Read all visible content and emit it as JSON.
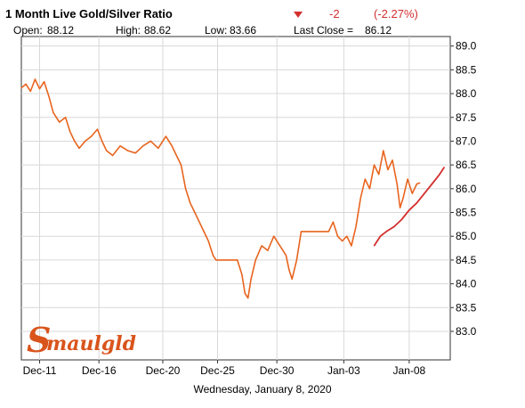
{
  "chart_data": {
    "type": "line",
    "title": "1 Month Live Gold/Silver Ratio",
    "change": {
      "value": "-2",
      "percent": "(-2.27%)",
      "direction": "down",
      "color": "#d32f2f"
    },
    "stats": {
      "open_label": "Open:",
      "open": "88.12",
      "high_label": "High:",
      "high": "88.62",
      "low_label": "Low:",
      "low": "83.66",
      "close_label": "Last Close =",
      "close": "86.12"
    },
    "xlabel": "Wednesday, January  8, 2020",
    "x_tick_labels": [
      "Dec-11",
      "Dec-16",
      "Dec-20",
      "Dec-25",
      "Dec-30",
      "Jan-03",
      "Jan-08"
    ],
    "y_ticks": [
      83.0,
      83.5,
      84.0,
      84.5,
      85.0,
      85.5,
      86.0,
      86.5,
      87.0,
      87.5,
      88.0,
      88.5,
      89.0
    ],
    "ylim": [
      82.4,
      89.2
    ],
    "grid": true,
    "logo": "Smaulgld",
    "series": [
      {
        "color": "#e8641e",
        "points": [
          [
            0,
            88.12
          ],
          [
            0.3,
            88.2
          ],
          [
            0.6,
            88.05
          ],
          [
            0.9,
            88.3
          ],
          [
            1.2,
            88.1
          ],
          [
            1.5,
            88.25
          ],
          [
            1.8,
            87.95
          ],
          [
            2.1,
            87.6
          ],
          [
            2.5,
            87.4
          ],
          [
            2.9,
            87.5
          ],
          [
            3.2,
            87.2
          ],
          [
            3.5,
            87.0
          ],
          [
            3.8,
            86.85
          ],
          [
            4.2,
            87.0
          ],
          [
            4.6,
            87.1
          ],
          [
            5.0,
            87.25
          ],
          [
            5.3,
            87.0
          ],
          [
            5.6,
            86.8
          ],
          [
            6.0,
            86.7
          ],
          [
            6.5,
            86.9
          ],
          [
            7.0,
            86.8
          ],
          [
            7.5,
            86.75
          ],
          [
            8.0,
            86.9
          ],
          [
            8.5,
            87.0
          ],
          [
            9.0,
            86.85
          ],
          [
            9.5,
            87.1
          ],
          [
            9.9,
            86.9
          ],
          [
            10.2,
            86.7
          ],
          [
            10.5,
            86.5
          ],
          [
            10.8,
            86.0
          ],
          [
            11.1,
            85.7
          ],
          [
            11.4,
            85.5
          ],
          [
            11.7,
            85.3
          ],
          [
            12.0,
            85.1
          ],
          [
            12.3,
            84.9
          ],
          [
            12.6,
            84.6
          ],
          [
            12.8,
            84.5
          ],
          [
            13.5,
            84.5
          ],
          [
            14.2,
            84.5
          ],
          [
            14.5,
            84.2
          ],
          [
            14.7,
            83.8
          ],
          [
            14.9,
            83.7
          ],
          [
            15.1,
            84.1
          ],
          [
            15.4,
            84.5
          ],
          [
            15.8,
            84.8
          ],
          [
            16.2,
            84.7
          ],
          [
            16.6,
            85.0
          ],
          [
            17.0,
            84.8
          ],
          [
            17.4,
            84.6
          ],
          [
            17.6,
            84.3
          ],
          [
            17.8,
            84.1
          ],
          [
            18.1,
            84.5
          ],
          [
            18.4,
            85.1
          ],
          [
            18.8,
            85.1
          ],
          [
            19.5,
            85.1
          ],
          [
            20.2,
            85.1
          ],
          [
            20.5,
            85.3
          ],
          [
            20.8,
            85.0
          ],
          [
            21.1,
            84.9
          ],
          [
            21.4,
            85.0
          ],
          [
            21.7,
            84.8
          ],
          [
            22.0,
            85.2
          ],
          [
            22.3,
            85.8
          ],
          [
            22.6,
            86.2
          ],
          [
            22.9,
            86.0
          ],
          [
            23.2,
            86.5
          ],
          [
            23.5,
            86.3
          ],
          [
            23.8,
            86.8
          ],
          [
            24.1,
            86.4
          ],
          [
            24.4,
            86.6
          ],
          [
            24.7,
            86.1
          ],
          [
            24.9,
            85.6
          ],
          [
            25.1,
            85.8
          ],
          [
            25.4,
            86.2
          ],
          [
            25.7,
            85.9
          ],
          [
            26.0,
            86.1
          ],
          [
            26.2,
            86.12
          ]
        ]
      },
      {
        "color": "#d32f2f",
        "points": [
          [
            23.2,
            84.8
          ],
          [
            23.6,
            85.0
          ],
          [
            24.0,
            85.1
          ],
          [
            24.5,
            85.2
          ],
          [
            25.0,
            85.35
          ],
          [
            25.5,
            85.55
          ],
          [
            26.0,
            85.7
          ],
          [
            26.5,
            85.9
          ],
          [
            27.0,
            86.1
          ],
          [
            27.5,
            86.3
          ],
          [
            27.8,
            86.45
          ]
        ]
      }
    ]
  }
}
